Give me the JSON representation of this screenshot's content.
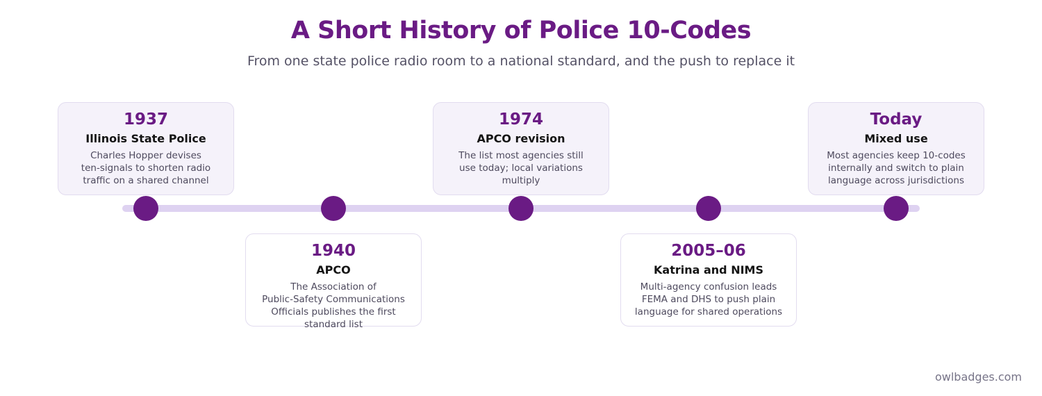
{
  "title": "A Short History of Police 10-Codes",
  "subtitle": "From one state police radio room to a national standard, and the push to replace it",
  "events": [
    {
      "year": "1937",
      "heading": "Illinois State Police",
      "lines": [
        "Charles Hopper devises",
        "ten-signals to shorten radio",
        "traffic on a shared channel"
      ]
    },
    {
      "year": "1940",
      "heading": "APCO",
      "lines": [
        "The Association of",
        "Public-Safety Communications",
        "Officials publishes the first",
        "standard list"
      ]
    },
    {
      "year": "1974",
      "heading": "APCO revision",
      "lines": [
        "The list most agencies still",
        "use today; local variations",
        "multiply"
      ]
    },
    {
      "year": "2005–06",
      "heading": "Katrina and NIMS",
      "lines": [
        "Multi-agency confusion leads",
        "FEMA and DHS to push plain",
        "language for shared operations"
      ]
    },
    {
      "year": "Today",
      "heading": "Mixed use",
      "lines": [
        "Most agencies keep 10-codes",
        "internally and switch to plain",
        "language across jurisdictions"
      ]
    }
  ],
  "footer": "owlbadges.com"
}
